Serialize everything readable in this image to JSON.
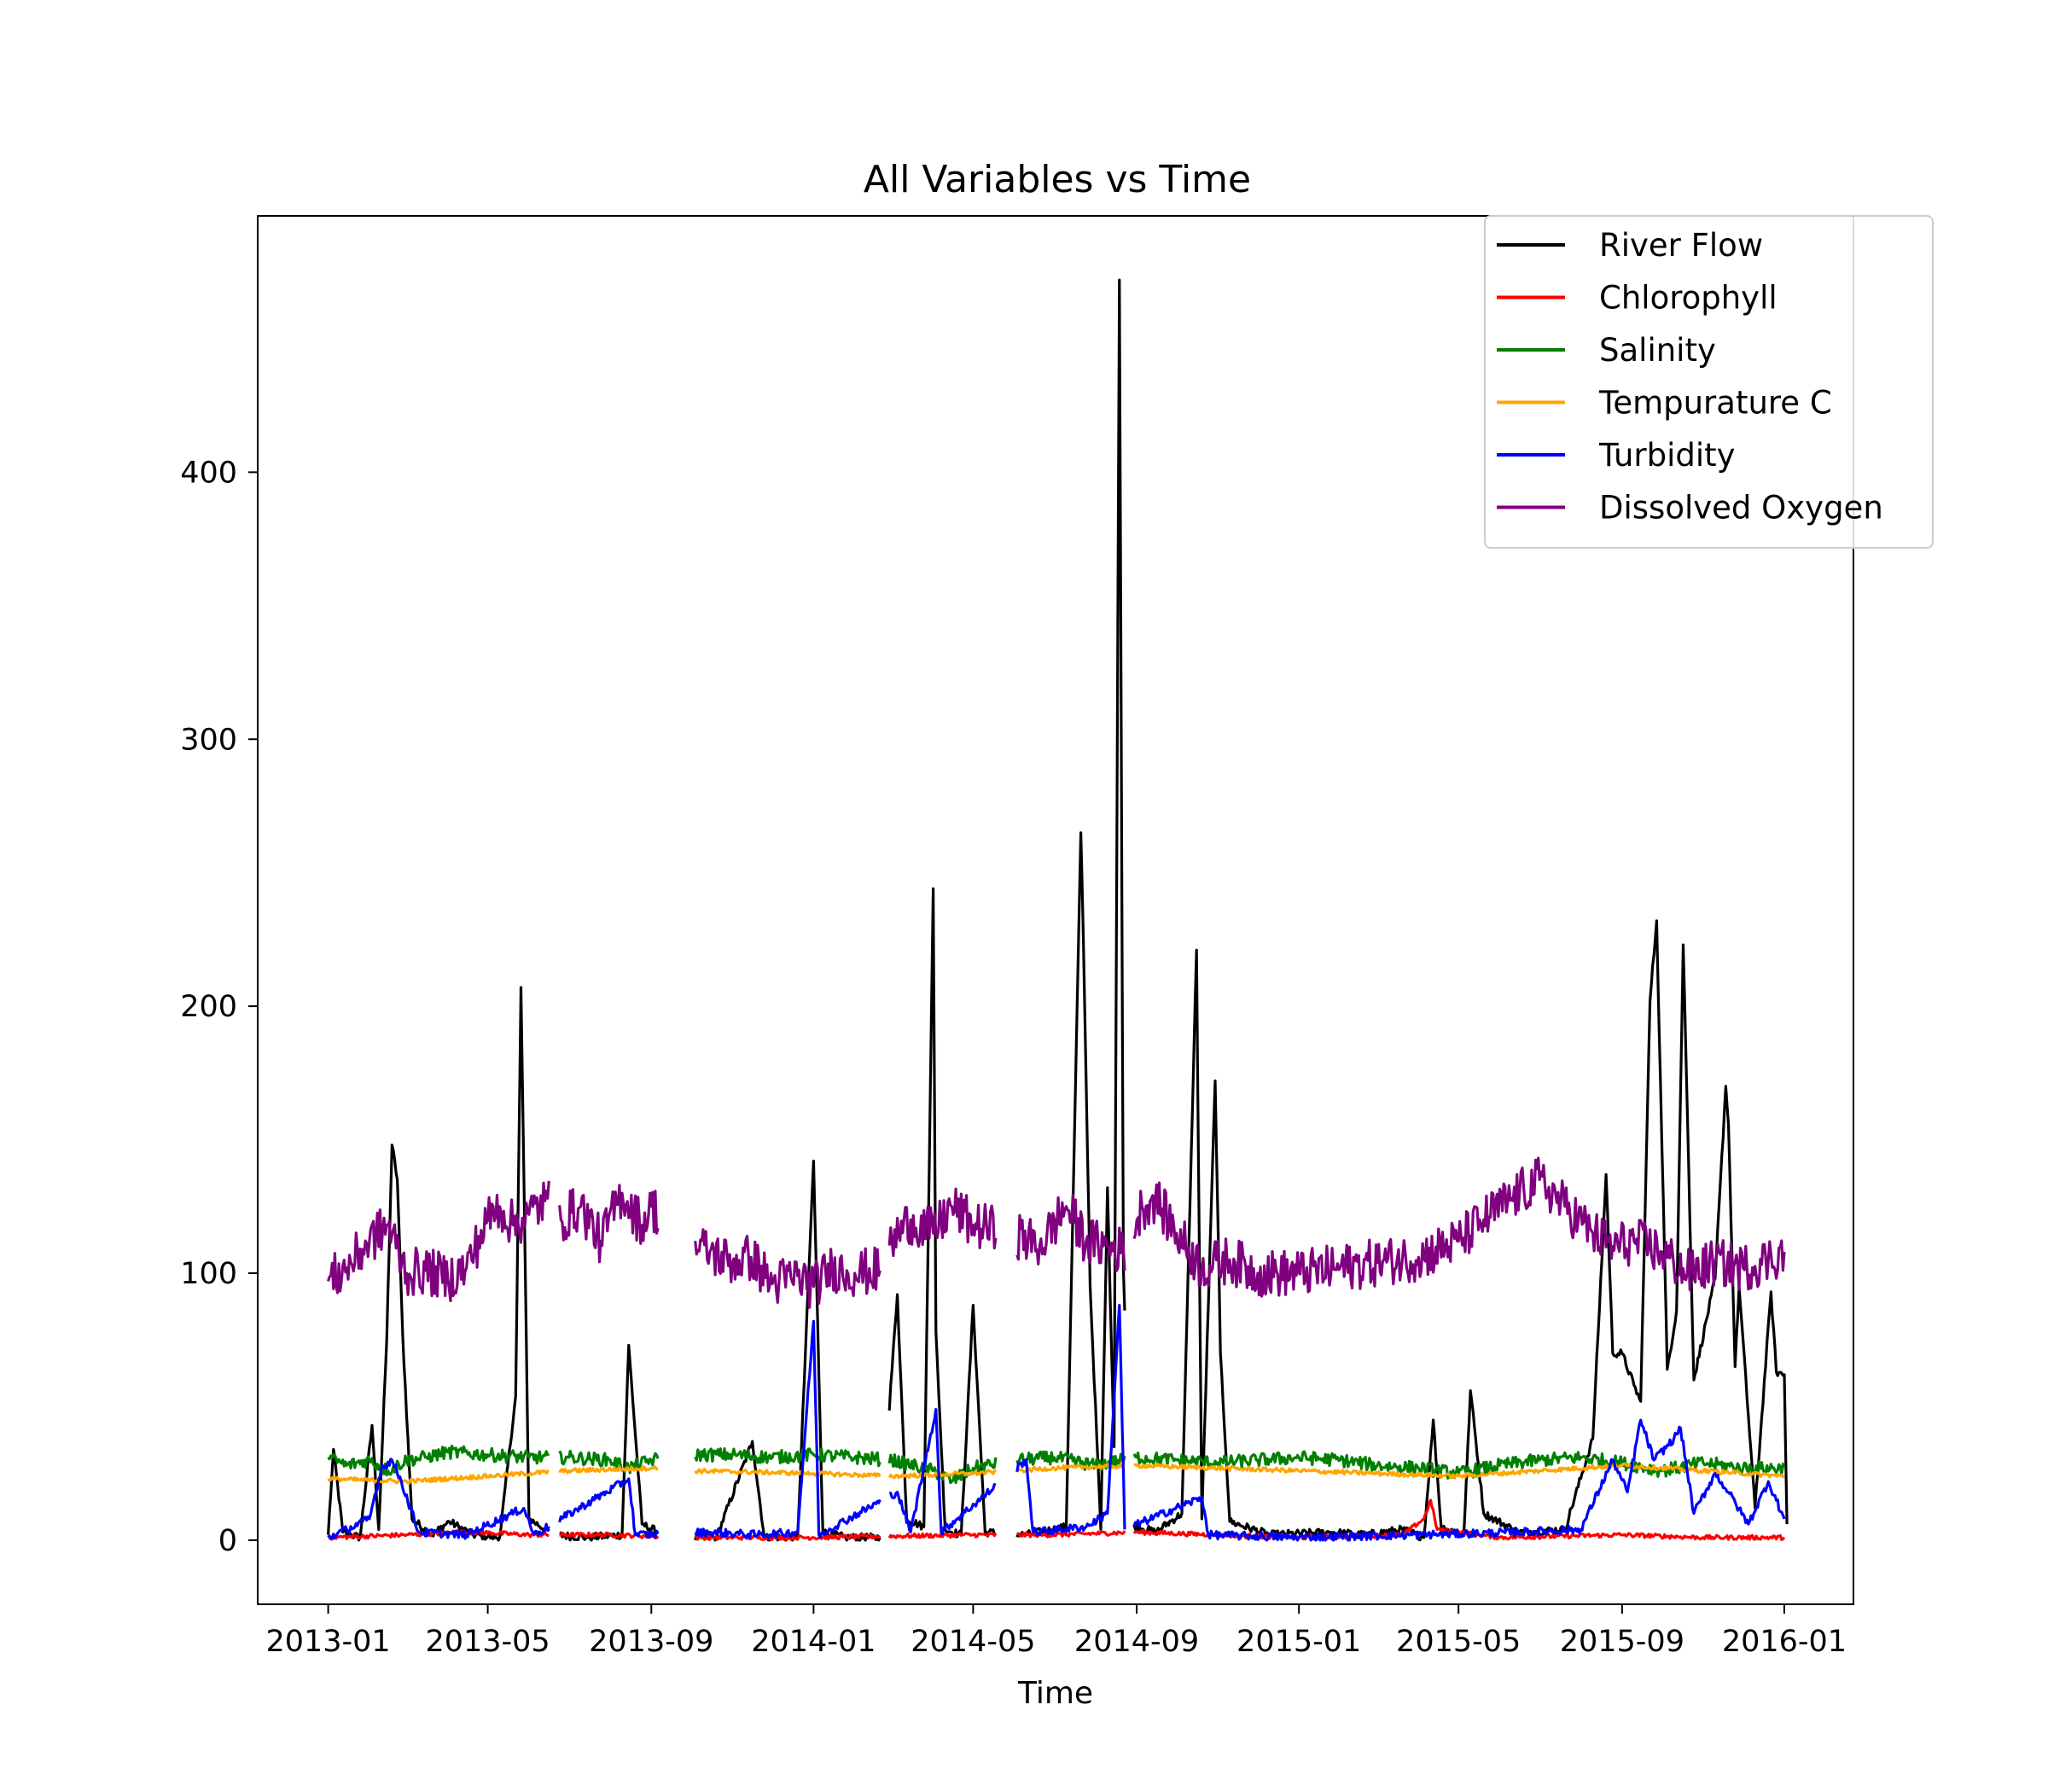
{
  "chart_data": {
    "type": "line",
    "title": "All Variables vs Time",
    "xlabel": "Time",
    "ylabel": "",
    "x_range": [
      "2012-11-09",
      "2016-02-22"
    ],
    "ylim": [
      -24,
      496
    ],
    "x_ticks": [
      "2013-01",
      "2013-05",
      "2013-09",
      "2014-01",
      "2014-05",
      "2014-09",
      "2015-01",
      "2015-05",
      "2015-09",
      "2016-01"
    ],
    "y_ticks": [
      0,
      100,
      200,
      300,
      400
    ],
    "grid": false,
    "legend_position": "top-right",
    "series": [
      {
        "name": "River Flow",
        "color": "#000000",
        "points": [
          [
            "2013-01-01",
            2
          ],
          [
            "2013-01-05",
            34
          ],
          [
            "2013-01-12",
            3
          ],
          [
            "2013-01-25",
            1
          ],
          [
            "2013-02-03",
            43
          ],
          [
            "2013-02-08",
            4
          ],
          [
            "2013-02-14",
            75
          ],
          [
            "2013-02-18",
            148
          ],
          [
            "2013-02-22",
            135
          ],
          [
            "2013-02-26",
            77
          ],
          [
            "2013-03-05",
            8
          ],
          [
            "2013-03-20",
            2
          ],
          [
            "2013-04-02",
            7
          ],
          [
            "2013-04-20",
            2
          ],
          [
            "2013-05-10",
            1
          ],
          [
            "2013-05-22",
            54
          ],
          [
            "2013-05-26",
            207
          ],
          [
            "2013-06-01",
            8
          ],
          [
            "2013-06-20",
            2
          ],
          [
            "2013-07-15",
            1
          ],
          [
            "2013-08-10",
            2
          ],
          [
            "2013-08-15",
            73
          ],
          [
            "2013-08-25",
            6
          ],
          [
            "2013-09-15",
            1
          ],
          [
            "2013-10-20",
            1
          ],
          [
            "2013-11-16",
            37
          ],
          [
            "2013-11-25",
            1
          ],
          [
            "2013-12-20",
            1
          ],
          [
            "2014-01-01",
            142
          ],
          [
            "2014-01-08",
            3
          ],
          [
            "2014-01-25",
            1
          ],
          [
            "2014-02-20",
            1
          ],
          [
            "2014-03-05",
            92
          ],
          [
            "2014-03-12",
            8
          ],
          [
            "2014-03-25",
            5
          ],
          [
            "2014-04-01",
            244
          ],
          [
            "2014-04-03",
            78
          ],
          [
            "2014-04-10",
            4
          ],
          [
            "2014-04-22",
            2
          ],
          [
            "2014-05-01",
            88
          ],
          [
            "2014-05-10",
            3
          ],
          [
            "2014-06-10",
            2
          ],
          [
            "2014-07-10",
            5
          ],
          [
            "2014-07-21",
            265
          ],
          [
            "2014-07-23",
            223
          ],
          [
            "2014-07-28",
            95
          ],
          [
            "2014-08-05",
            4
          ],
          [
            "2014-08-10",
            132
          ],
          [
            "2014-08-15",
            35
          ],
          [
            "2014-08-19",
            472
          ],
          [
            "2014-08-22",
            101
          ],
          [
            "2014-08-28",
            6
          ],
          [
            "2014-09-15",
            3
          ],
          [
            "2014-10-05",
            10
          ],
          [
            "2014-10-16",
            221
          ],
          [
            "2014-10-20",
            8
          ],
          [
            "2014-10-30",
            172
          ],
          [
            "2014-11-03",
            70
          ],
          [
            "2014-11-10",
            7
          ],
          [
            "2014-12-10",
            2
          ],
          [
            "2015-01-25",
            3
          ],
          [
            "2015-02-20",
            2
          ],
          [
            "2015-03-20",
            4
          ],
          [
            "2015-04-05",
            1
          ],
          [
            "2015-04-12",
            45
          ],
          [
            "2015-04-18",
            5
          ],
          [
            "2015-05-05",
            2
          ],
          [
            "2015-05-10",
            56
          ],
          [
            "2015-05-20",
            10
          ],
          [
            "2015-06-15",
            3
          ],
          [
            "2015-07-20",
            4
          ],
          [
            "2015-08-10",
            38
          ],
          [
            "2015-08-20",
            137
          ],
          [
            "2015-08-25",
            70
          ],
          [
            "2015-09-01",
            70
          ],
          [
            "2015-09-10",
            58
          ],
          [
            "2015-09-15",
            52
          ],
          [
            "2015-09-22",
            202
          ],
          [
            "2015-09-27",
            232
          ],
          [
            "2015-10-05",
            64
          ],
          [
            "2015-10-12",
            86
          ],
          [
            "2015-10-17",
            223
          ],
          [
            "2015-10-25",
            60
          ],
          [
            "2015-11-10",
            98
          ],
          [
            "2015-11-18",
            170
          ],
          [
            "2015-11-20",
            156
          ],
          [
            "2015-11-25",
            65
          ],
          [
            "2015-11-28",
            95
          ],
          [
            "2015-12-10",
            12
          ],
          [
            "2015-12-22",
            93
          ],
          [
            "2015-12-26",
            63
          ],
          [
            "2016-01-01",
            62
          ],
          [
            "2016-01-03",
            6
          ]
        ]
      },
      {
        "name": "Chlorophyll",
        "color": "#ff0000",
        "points": [
          [
            "2013-01-01",
            1
          ],
          [
            "2013-03-01",
            2
          ],
          [
            "2013-04-20",
            3
          ],
          [
            "2013-06-01",
            2
          ],
          [
            "2013-08-01",
            2
          ],
          [
            "2013-10-01",
            1
          ],
          [
            "2014-01-01",
            1
          ],
          [
            "2014-05-01",
            2
          ],
          [
            "2014-07-01",
            2
          ],
          [
            "2014-09-01",
            3
          ],
          [
            "2015-01-01",
            1
          ],
          [
            "2015-03-20",
            2
          ],
          [
            "2015-04-05",
            8
          ],
          [
            "2015-04-10",
            15
          ],
          [
            "2015-04-15",
            4
          ],
          [
            "2015-06-01",
            1
          ],
          [
            "2015-09-01",
            2
          ],
          [
            "2015-11-01",
            1
          ],
          [
            "2016-01-01",
            1
          ]
        ]
      },
      {
        "name": "Salinity",
        "color": "#008000",
        "points": [
          [
            "2013-01-01",
            31
          ],
          [
            "2013-01-15",
            28
          ],
          [
            "2013-02-01",
            30
          ],
          [
            "2013-02-15",
            26
          ],
          [
            "2013-03-01",
            30
          ],
          [
            "2013-03-15",
            31
          ],
          [
            "2013-04-01",
            33
          ],
          [
            "2013-05-01",
            32
          ],
          [
            "2013-06-01",
            31
          ],
          [
            "2013-06-20",
            31
          ],
          [
            "2013-07-01",
            31
          ],
          [
            "2013-08-01",
            30
          ],
          [
            "2013-08-15",
            27
          ],
          [
            "2013-09-01",
            30
          ],
          [
            "2013-10-01",
            32
          ],
          [
            "2013-11-01",
            32
          ],
          [
            "2013-12-01",
            31
          ],
          [
            "2014-01-01",
            32
          ],
          [
            "2014-02-01",
            31
          ],
          [
            "2014-03-01",
            30
          ],
          [
            "2014-04-01",
            26
          ],
          [
            "2014-04-15",
            22
          ],
          [
            "2014-05-01",
            27
          ],
          [
            "2014-06-01",
            30
          ],
          [
            "2014-07-01",
            31
          ],
          [
            "2014-08-01",
            28
          ],
          [
            "2014-09-01",
            31
          ],
          [
            "2014-10-01",
            30
          ],
          [
            "2014-11-01",
            29
          ],
          [
            "2014-12-01",
            30
          ],
          [
            "2015-01-01",
            31
          ],
          [
            "2015-02-01",
            30
          ],
          [
            "2015-03-01",
            28
          ],
          [
            "2015-04-01",
            27
          ],
          [
            "2015-05-01",
            25
          ],
          [
            "2015-06-01",
            28
          ],
          [
            "2015-07-01",
            30
          ],
          [
            "2015-08-01",
            31
          ],
          [
            "2015-09-01",
            29
          ],
          [
            "2015-10-01",
            26
          ],
          [
            "2015-11-01",
            29
          ],
          [
            "2015-12-01",
            27
          ],
          [
            "2016-01-01",
            27
          ]
        ]
      },
      {
        "name": "Tempurature C",
        "color": "#ffa500",
        "points": [
          [
            "2013-01-01",
            23
          ],
          [
            "2013-03-01",
            22
          ],
          [
            "2013-05-01",
            24
          ],
          [
            "2013-07-01",
            26
          ],
          [
            "2013-09-01",
            27
          ],
          [
            "2013-10-01",
            26
          ],
          [
            "2014-01-01",
            25
          ],
          [
            "2014-03-01",
            24
          ],
          [
            "2014-05-01",
            25
          ],
          [
            "2014-07-01",
            27
          ],
          [
            "2014-09-01",
            28
          ],
          [
            "2014-11-01",
            27
          ],
          [
            "2015-01-01",
            26
          ],
          [
            "2015-03-01",
            25
          ],
          [
            "2015-05-01",
            24
          ],
          [
            "2015-07-01",
            26
          ],
          [
            "2015-09-01",
            28
          ],
          [
            "2015-11-01",
            26
          ],
          [
            "2016-01-01",
            24
          ]
        ]
      },
      {
        "name": "Turbidity",
        "color": "#0000ff",
        "points": [
          [
            "2013-01-01",
            1
          ],
          [
            "2013-01-15",
            4
          ],
          [
            "2013-02-01",
            8
          ],
          [
            "2013-02-10",
            27
          ],
          [
            "2013-02-18",
            30
          ],
          [
            "2013-02-25",
            22
          ],
          [
            "2013-03-10",
            3
          ],
          [
            "2013-04-15",
            2
          ],
          [
            "2013-05-28",
            12
          ],
          [
            "2013-06-05",
            2
          ],
          [
            "2013-08-15",
            23
          ],
          [
            "2013-08-20",
            2
          ],
          [
            "2013-10-15",
            3
          ],
          [
            "2013-11-20",
            2
          ],
          [
            "2013-12-20",
            3
          ],
          [
            "2014-01-01",
            82
          ],
          [
            "2014-01-05",
            2
          ],
          [
            "2014-03-05",
            18
          ],
          [
            "2014-03-15",
            3
          ],
          [
            "2014-04-03",
            49
          ],
          [
            "2014-04-07",
            3
          ],
          [
            "2014-06-10",
            30
          ],
          [
            "2014-06-15",
            3
          ],
          [
            "2014-07-25",
            5
          ],
          [
            "2014-08-10",
            10
          ],
          [
            "2014-08-19",
            88
          ],
          [
            "2014-08-23",
            4
          ],
          [
            "2014-10-20",
            16
          ],
          [
            "2014-10-25",
            2
          ],
          [
            "2015-01-01",
            1
          ],
          [
            "2015-04-01",
            2
          ],
          [
            "2015-06-15",
            3
          ],
          [
            "2015-08-01",
            4
          ],
          [
            "2015-08-25",
            30
          ],
          [
            "2015-09-05",
            18
          ],
          [
            "2015-09-15",
            45
          ],
          [
            "2015-09-25",
            30
          ],
          [
            "2015-10-10",
            38
          ],
          [
            "2015-10-15",
            42
          ],
          [
            "2015-10-25",
            10
          ],
          [
            "2015-11-10",
            25
          ],
          [
            "2015-11-20",
            18
          ],
          [
            "2015-12-05",
            6
          ],
          [
            "2015-12-20",
            22
          ],
          [
            "2016-01-01",
            8
          ]
        ]
      },
      {
        "name": "Dissolved Oxygen",
        "color": "#800080",
        "points": [
          [
            "2013-01-01",
            97
          ],
          [
            "2013-01-15",
            102
          ],
          [
            "2013-02-01",
            112
          ],
          [
            "2013-02-15",
            118
          ],
          [
            "2013-03-01",
            100
          ],
          [
            "2013-03-15",
            101
          ],
          [
            "2013-04-01",
            98
          ],
          [
            "2013-04-15",
            102
          ],
          [
            "2013-05-01",
            120
          ],
          [
            "2013-05-10",
            125
          ],
          [
            "2013-05-20",
            118
          ],
          [
            "2013-06-01",
            122
          ],
          [
            "2013-06-15",
            128
          ],
          [
            "2013-06-25",
            120
          ],
          [
            "2013-07-10",
            125
          ],
          [
            "2013-07-25",
            112
          ],
          [
            "2013-08-10",
            130
          ],
          [
            "2013-08-25",
            118
          ],
          [
            "2013-09-01",
            125
          ],
          [
            "2013-10-01",
            110
          ],
          [
            "2013-10-15",
            108
          ],
          [
            "2013-11-01",
            104
          ],
          [
            "2013-11-15",
            106
          ],
          [
            "2013-12-01",
            96
          ],
          [
            "2013-12-20",
            99
          ],
          [
            "2014-01-01",
            95
          ],
          [
            "2014-01-15",
            102
          ],
          [
            "2014-02-01",
            100
          ],
          [
            "2014-02-20",
            101
          ],
          [
            "2014-03-01",
            112
          ],
          [
            "2014-03-15",
            120
          ],
          [
            "2014-04-01",
            115
          ],
          [
            "2014-04-15",
            125
          ],
          [
            "2014-05-01",
            118
          ],
          [
            "2014-06-01",
            115
          ],
          [
            "2014-06-20",
            110
          ],
          [
            "2014-07-10",
            125
          ],
          [
            "2014-07-25",
            112
          ],
          [
            "2014-08-10",
            110
          ],
          [
            "2014-08-25",
            108
          ],
          [
            "2014-09-05",
            125
          ],
          [
            "2014-09-15",
            128
          ],
          [
            "2014-10-01",
            115
          ],
          [
            "2014-10-20",
            102
          ],
          [
            "2014-11-10",
            105
          ],
          [
            "2014-12-01",
            100
          ],
          [
            "2015-01-01",
            100
          ],
          [
            "2015-02-01",
            102
          ],
          [
            "2015-03-01",
            104
          ],
          [
            "2015-04-01",
            106
          ],
          [
            "2015-05-01",
            112
          ],
          [
            "2015-05-20",
            120
          ],
          [
            "2015-06-10",
            128
          ],
          [
            "2015-07-01",
            135
          ],
          [
            "2015-07-20",
            125
          ],
          [
            "2015-08-10",
            115
          ],
          [
            "2015-08-25",
            110
          ],
          [
            "2015-09-10",
            112
          ],
          [
            "2015-10-01",
            108
          ],
          [
            "2015-10-20",
            100
          ],
          [
            "2015-11-10",
            104
          ],
          [
            "2015-12-01",
            102
          ],
          [
            "2015-12-20",
            105
          ],
          [
            "2016-01-01",
            108
          ]
        ]
      }
    ]
  }
}
